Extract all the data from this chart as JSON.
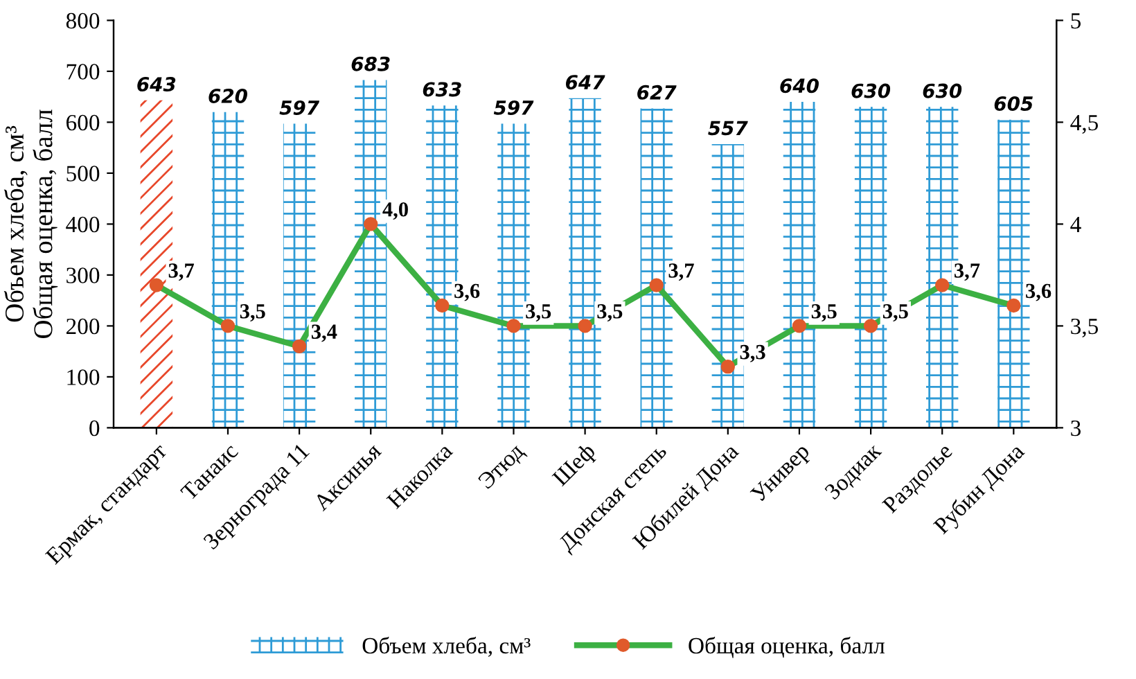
{
  "chart_data": {
    "type": "bar",
    "ylabel": "Объем хлеба, см³\nОбщая оценка, балл",
    "categories": [
      "Ермак, стандарт",
      "Танаис",
      "Зернограда 11",
      "Аксинья",
      "Наколка",
      "Этюд",
      "Шеф",
      "Донская степь",
      "Юбилей Дона",
      "Универ",
      "Зодиак",
      "Раздолье",
      "Рубин Дона"
    ],
    "series": [
      {
        "name": "Объем хлеба, см³",
        "colors": [
          "#e8472a",
          "#2e9bd6",
          "#2e9bd6",
          "#2e9bd6",
          "#2e9bd6",
          "#2e9bd6",
          "#2e9bd6",
          "#2e9bd6",
          "#2e9bd6",
          "#2e9bd6",
          "#2e9bd6",
          "#2e9bd6",
          "#2e9bd6"
        ],
        "values": [
          643,
          620,
          597,
          683,
          633,
          597,
          647,
          627,
          557,
          640,
          630,
          630,
          605
        ],
        "value_labels": [
          "643",
          "620",
          "597",
          "683",
          "633",
          "597",
          "647",
          "627",
          "557",
          "640",
          "630",
          "630",
          "605"
        ]
      },
      {
        "name": "Общая оценка, балл",
        "type": "line",
        "axis": "y2",
        "color": "#3cb043",
        "colors": [
          "#e05a2b",
          "#e05a2b",
          "#e05a2b",
          "#e05a2b",
          "#e05a2b",
          "#e05a2b",
          "#e05a2b",
          "#e05a2b",
          "#e05a2b",
          "#e05a2b",
          "#e05a2b",
          "#e05a2b",
          "#e05a2b"
        ],
        "values": [
          3.7,
          3.5,
          3.4,
          4.0,
          3.6,
          3.5,
          3.5,
          3.7,
          3.3,
          3.5,
          3.5,
          3.7,
          3.6
        ],
        "value_labels": [
          "3,7",
          "3,5",
          "3,4",
          "4,0",
          "3,6",
          "3,5",
          "3,5",
          "3,7",
          "3,3",
          "3,5",
          "3,5",
          "3,7",
          "3,6"
        ]
      }
    ],
    "ylim": [
      0,
      800
    ],
    "yticks": [
      0,
      100,
      200,
      300,
      400,
      500,
      600,
      700,
      800
    ],
    "y2lim": [
      3,
      5
    ],
    "y2ticks": [
      3,
      {
        "value": 3.5,
        "label": "3,5"
      },
      4,
      {
        "value": 4.5,
        "label": "4,5"
      },
      5
    ],
    "marker": "circle",
    "line_style": "solid",
    "grid": false,
    "legend": "bottom"
  }
}
